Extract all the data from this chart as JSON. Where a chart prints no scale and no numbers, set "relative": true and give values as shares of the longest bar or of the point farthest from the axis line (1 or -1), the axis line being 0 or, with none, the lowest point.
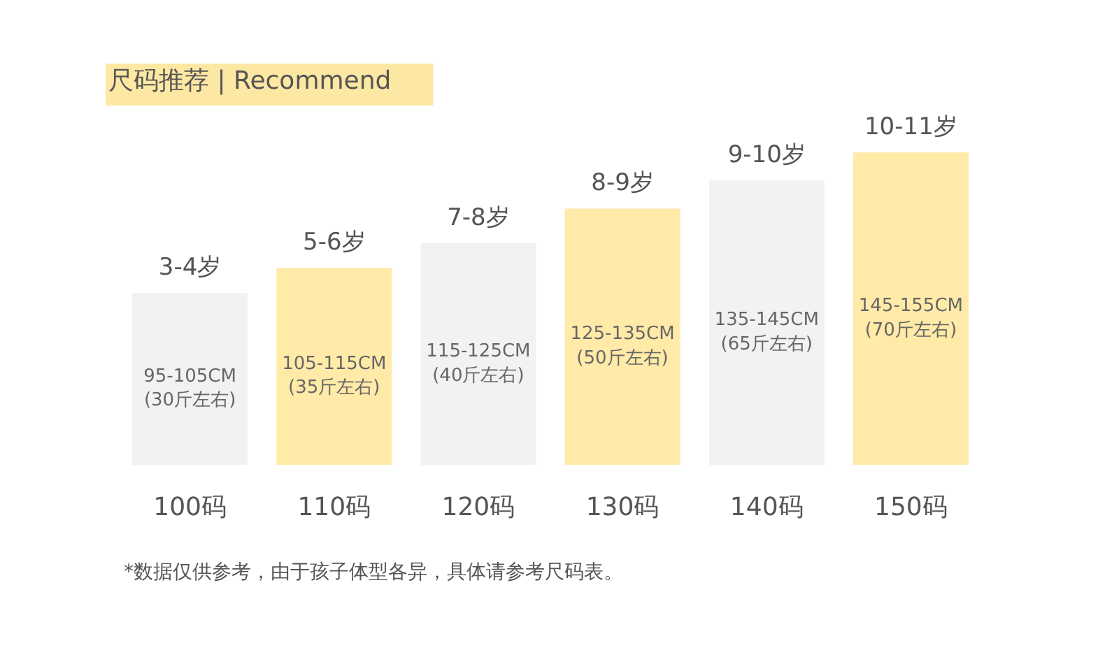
{
  "chart_data": {
    "type": "bar",
    "title": "尺码推荐 | Recommend",
    "relative": true,
    "categories": [
      "100码",
      "110码",
      "120码",
      "130码",
      "140码",
      "150码"
    ],
    "values": [
      0.55,
      0.63,
      0.71,
      0.82,
      0.91,
      1
    ],
    "colors": [
      "#f2f2f2",
      "#ffeaa8",
      "#f2f2f2",
      "#ffeaa8",
      "#f2f2f2",
      "#ffeaa8"
    ],
    "annotations": [
      {
        "text": "3-4岁",
        "x": "100码",
        "y": 0.55
      },
      {
        "text": "5-6岁",
        "x": "110码",
        "y": 0.63
      },
      {
        "text": "7-8岁",
        "x": "120码",
        "y": 0.71
      },
      {
        "text": "8-9岁",
        "x": "130码",
        "y": 0.82
      },
      {
        "text": "9-10岁",
        "x": "140码",
        "y": 0.91
      },
      {
        "text": "10-11岁",
        "x": "150码",
        "y": 1
      },
      "95-105CM\n(30斤左右)",
      "105-115CM\n(35斤左右)",
      "115-125CM\n(40斤左右)",
      "125-135CM\n(50斤左右)",
      "135-145CM\n(65斤左右)",
      "145-155CM\n(70斤左右)",
      "*数据仅供参考，由于孩子体型各异，具体请参考尺码表。"
    ]
  }
}
